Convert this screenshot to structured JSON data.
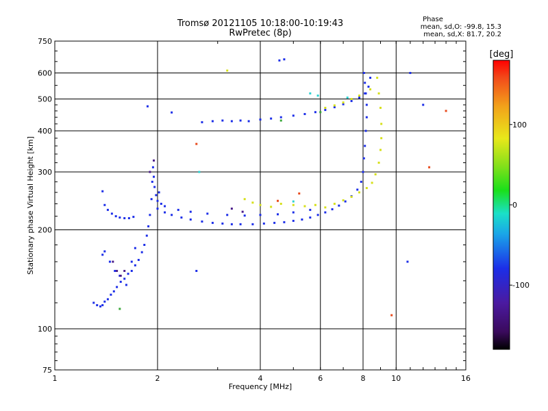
{
  "header": {
    "title": "Tromsø 20121105 10:18:00-10:19:43",
    "subtitle": "RwPretec (8p)"
  },
  "phase_info": {
    "heading": "Phase",
    "line_o": "mean, sd,O: -99.8, 15.3",
    "line_x": "mean, sd,X: 81.7, 20.2"
  },
  "colorbar": {
    "unit": "[deg]",
    "ticks": [
      "100",
      "0",
      "-100"
    ],
    "tick_values": [
      100,
      0,
      -100
    ],
    "range": [
      -180,
      180
    ]
  },
  "chart_data": {
    "type": "scatter",
    "xlabel": "Frequency [MHz]",
    "ylabel": "Stationary phase Virtual Height [km]",
    "xscale": "log",
    "yscale": "log",
    "xlim": [
      1,
      16
    ],
    "ylim": [
      75,
      750
    ],
    "x_ticks": [
      1,
      2,
      4,
      6,
      8,
      10,
      16
    ],
    "x_tick_labels": [
      "1",
      "2",
      "4",
      "6",
      "8",
      "10",
      "16"
    ],
    "y_ticks": [
      75,
      100,
      200,
      300,
      400,
      500,
      600,
      750
    ],
    "y_tick_labels": [
      "75",
      "100",
      "200",
      "300",
      "400",
      "500",
      "600",
      "750"
    ],
    "grid": true,
    "series": [
      {
        "color": "#1c2ee8",
        "points": [
          [
            1.3,
            120
          ],
          [
            1.33,
            118
          ],
          [
            1.36,
            117
          ],
          [
            1.38,
            118
          ],
          [
            1.4,
            121
          ],
          [
            1.43,
            123
          ],
          [
            1.46,
            127
          ],
          [
            1.49,
            130
          ],
          [
            1.52,
            134
          ],
          [
            1.56,
            139
          ],
          [
            1.6,
            142
          ],
          [
            1.64,
            147
          ],
          [
            1.68,
            150
          ],
          [
            1.72,
            156
          ],
          [
            1.76,
            162
          ],
          [
            1.8,
            171
          ],
          [
            1.83,
            180
          ],
          [
            1.86,
            192
          ],
          [
            1.88,
            205
          ],
          [
            1.9,
            222
          ],
          [
            1.92,
            248
          ],
          [
            1.93,
            280
          ],
          [
            1.94,
            310
          ],
          [
            1.95,
            290
          ],
          [
            1.96,
            270
          ],
          [
            1.98,
            255
          ],
          [
            2.0,
            245
          ],
          [
            2.02,
            260
          ],
          [
            2.05,
            240
          ],
          [
            1.38,
            262
          ],
          [
            1.4,
            238
          ],
          [
            1.43,
            230
          ],
          [
            1.47,
            224
          ],
          [
            1.51,
            220
          ],
          [
            1.55,
            218
          ],
          [
            1.6,
            217
          ],
          [
            1.65,
            217
          ],
          [
            1.7,
            219
          ],
          [
            1.38,
            168
          ],
          [
            1.4,
            172
          ],
          [
            1.45,
            160
          ],
          [
            1.5,
            150
          ],
          [
            1.55,
            145
          ],
          [
            1.62,
            136
          ],
          [
            1.68,
            160
          ],
          [
            1.72,
            176
          ],
          [
            2.0,
            232
          ],
          [
            2.1,
            226
          ],
          [
            2.2,
            222
          ],
          [
            2.35,
            218
          ],
          [
            2.5,
            215
          ],
          [
            2.7,
            212
          ],
          [
            2.9,
            210
          ],
          [
            3.1,
            209
          ],
          [
            3.3,
            208
          ],
          [
            3.5,
            208
          ],
          [
            3.8,
            208
          ],
          [
            4.1,
            209
          ],
          [
            4.4,
            210
          ],
          [
            4.7,
            211
          ],
          [
            5.0,
            213
          ],
          [
            5.3,
            215
          ],
          [
            5.6,
            218
          ],
          [
            5.9,
            222
          ],
          [
            6.2,
            226
          ],
          [
            6.5,
            231
          ],
          [
            6.8,
            237
          ],
          [
            7.1,
            244
          ],
          [
            7.4,
            253
          ],
          [
            7.7,
            265
          ],
          [
            7.9,
            280
          ],
          [
            8.0,
            300
          ],
          [
            8.05,
            330
          ],
          [
            8.1,
            360
          ],
          [
            8.15,
            400
          ],
          [
            8.2,
            440
          ],
          [
            8.2,
            480
          ],
          [
            8.15,
            520
          ],
          [
            8.1,
            560
          ],
          [
            8.05,
            600
          ],
          [
            2.1,
            236
          ],
          [
            2.3,
            230
          ],
          [
            2.5,
            227
          ],
          [
            2.8,
            224
          ],
          [
            3.2,
            222
          ],
          [
            3.6,
            221
          ],
          [
            4.0,
            222
          ],
          [
            4.5,
            223
          ],
          [
            5.0,
            226
          ],
          [
            5.6,
            230
          ],
          [
            2.7,
            425
          ],
          [
            2.9,
            428
          ],
          [
            3.1,
            430
          ],
          [
            3.3,
            428
          ],
          [
            3.5,
            430
          ],
          [
            3.7,
            428
          ],
          [
            4.0,
            433
          ],
          [
            4.3,
            436
          ],
          [
            4.6,
            440
          ],
          [
            5.0,
            445
          ],
          [
            5.4,
            450
          ],
          [
            5.8,
            456
          ],
          [
            6.2,
            463
          ],
          [
            6.6,
            472
          ],
          [
            7.0,
            482
          ],
          [
            7.4,
            493
          ],
          [
            7.8,
            505
          ],
          [
            8.1,
            520
          ],
          [
            8.3,
            545
          ],
          [
            8.4,
            580
          ],
          [
            1.87,
            475
          ],
          [
            2.2,
            455
          ],
          [
            4.55,
            655
          ],
          [
            4.7,
            660
          ],
          [
            11.0,
            600
          ],
          [
            12.0,
            480
          ],
          [
            10.8,
            160
          ],
          [
            2.6,
            150
          ]
        ]
      },
      {
        "color": "#d6e01a",
        "points": [
          [
            3.6,
            248
          ],
          [
            3.8,
            242
          ],
          [
            4.0,
            238
          ],
          [
            4.3,
            235
          ],
          [
            4.6,
            240
          ],
          [
            5.0,
            238
          ],
          [
            5.4,
            236
          ],
          [
            5.8,
            238
          ],
          [
            6.2,
            234
          ],
          [
            6.6,
            240
          ],
          [
            7.0,
            246
          ],
          [
            7.4,
            252
          ],
          [
            7.8,
            260
          ],
          [
            8.2,
            268
          ],
          [
            8.5,
            278
          ],
          [
            8.7,
            295
          ],
          [
            8.9,
            320
          ],
          [
            9.0,
            350
          ],
          [
            9.05,
            380
          ],
          [
            9.05,
            420
          ],
          [
            9.0,
            470
          ],
          [
            8.9,
            520
          ],
          [
            8.8,
            580
          ],
          [
            6.2,
            470
          ],
          [
            6.6,
            478
          ],
          [
            7.0,
            488
          ],
          [
            7.4,
            500
          ],
          [
            7.8,
            512
          ],
          [
            8.4,
            535
          ],
          [
            3.2,
            610
          ]
        ]
      },
      {
        "color": "#2ed1d1",
        "points": [
          [
            5.6,
            520
          ],
          [
            5.9,
            512
          ],
          [
            2.65,
            300
          ],
          [
            5.0,
            244
          ],
          [
            7.2,
            505
          ]
        ]
      },
      {
        "color": "#e84a1c",
        "points": [
          [
            2.6,
            365
          ],
          [
            4.5,
            245
          ],
          [
            5.2,
            258
          ],
          [
            9.7,
            110
          ],
          [
            12.5,
            310
          ],
          [
            14.0,
            460
          ]
        ]
      },
      {
        "color": "#4a1c8a",
        "points": [
          [
            1.48,
            160
          ],
          [
            1.52,
            150
          ],
          [
            1.56,
            145
          ],
          [
            1.6,
            150
          ],
          [
            3.3,
            232
          ],
          [
            3.55,
            227
          ],
          [
            1.9,
            300
          ],
          [
            1.95,
            325
          ]
        ]
      },
      {
        "color": "#3aa83a",
        "points": [
          [
            1.55,
            115
          ],
          [
            6.0,
            456
          ],
          [
            4.6,
            430
          ]
        ]
      }
    ]
  }
}
